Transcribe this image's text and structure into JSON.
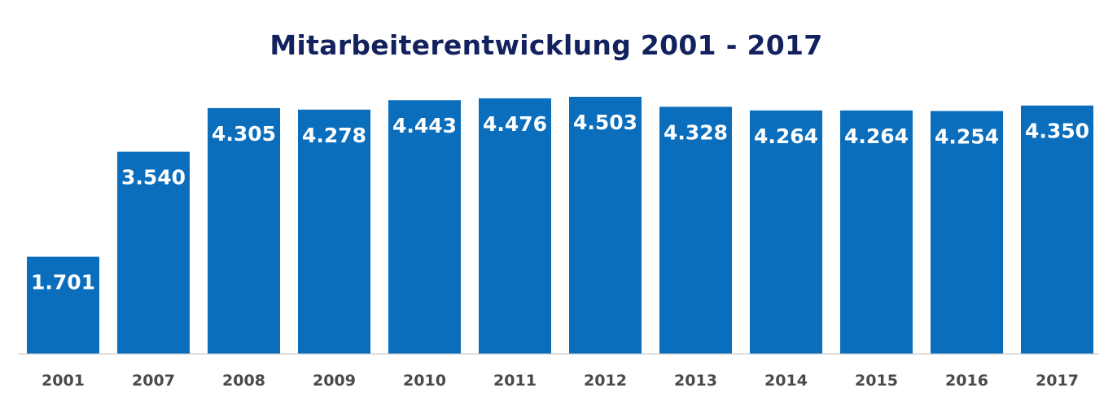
{
  "chart_data": {
    "type": "bar",
    "title": "Mitarbeiterentwicklung 2001 - 2017",
    "xlabel": "",
    "ylabel": "",
    "categories": [
      "2001",
      "2007",
      "2008",
      "2009",
      "2010",
      "2011",
      "2012",
      "2013",
      "2014",
      "2015",
      "2016",
      "2017"
    ],
    "values": [
      1701,
      3540,
      4305,
      4278,
      4443,
      4476,
      4503,
      4328,
      4264,
      4264,
      4254,
      4350
    ],
    "value_labels": [
      "1.701",
      "3.540",
      "4.305",
      "4.278",
      "4.443",
      "4.476",
      "4.503",
      "4.328",
      "4.264",
      "4.264",
      "4.254",
      "4.350"
    ],
    "ylim": [
      0,
      4503
    ],
    "grid": false,
    "legend": "none",
    "colors": {
      "bar": "#0a6ebd",
      "title": "#13215e",
      "tick_label": "#4a4a4a",
      "value_label": "#ffffff"
    }
  }
}
